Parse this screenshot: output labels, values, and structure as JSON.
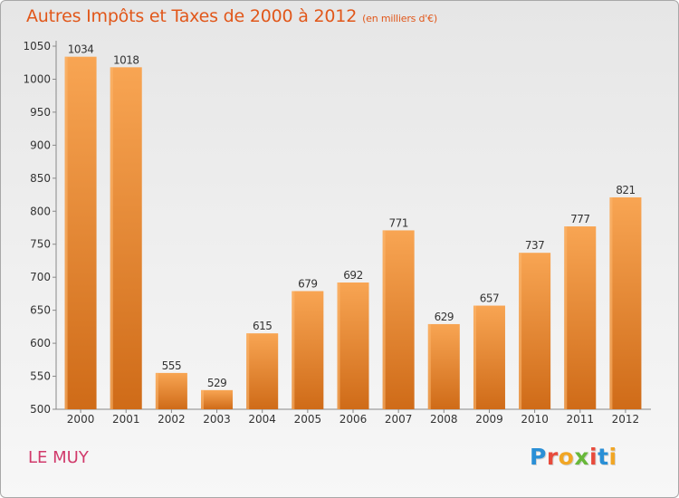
{
  "header": {
    "title": "Autres Impôts et Taxes de 2000 à 2012",
    "subtitle": "(en milliers d'€)"
  },
  "footer": {
    "city": "LE MUY",
    "logo_letters": [
      "P",
      "r",
      "o",
      "x",
      "i",
      "t",
      "i"
    ],
    "logo_colors": [
      "#2a8fd6",
      "#e84b3c",
      "#f1a625",
      "#68b83a",
      "#e84b3c",
      "#2a8fd6",
      "#f1a625"
    ]
  },
  "chart_data": {
    "type": "bar",
    "title": "Autres Impôts et Taxes de 2000 à 2012",
    "subtitle": "(en milliers d'€)",
    "categories": [
      "2000",
      "2001",
      "2002",
      "2003",
      "2004",
      "2005",
      "2006",
      "2007",
      "2008",
      "2009",
      "2010",
      "2011",
      "2012"
    ],
    "values": [
      1034,
      1018,
      555,
      529,
      615,
      679,
      692,
      771,
      629,
      657,
      737,
      777,
      821
    ],
    "ylim": [
      500,
      1050
    ],
    "yticks": [
      500,
      550,
      600,
      650,
      700,
      750,
      800,
      850,
      900,
      950,
      1000,
      1050
    ],
    "grid": false,
    "bar_color": "#f0913a",
    "bar_color_dark": "#d06e1e"
  }
}
